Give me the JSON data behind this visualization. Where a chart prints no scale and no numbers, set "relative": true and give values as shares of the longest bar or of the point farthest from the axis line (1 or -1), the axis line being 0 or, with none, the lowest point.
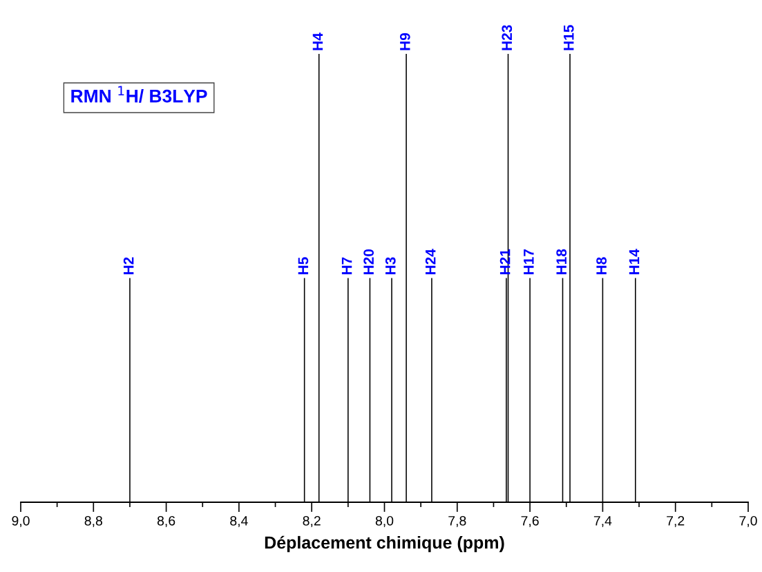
{
  "chart_data": {
    "type": "bar",
    "relative": true,
    "xlabel": "Déplacement chimique (ppm)",
    "x": [
      7.31,
      7.4,
      7.49,
      7.51,
      7.6,
      7.66,
      7.665,
      7.87,
      7.94,
      7.98,
      8.04,
      8.1,
      8.18,
      8.22,
      8.7
    ],
    "values": [
      0.5,
      0.5,
      1,
      0.5,
      0.5,
      1,
      0.5,
      0.5,
      1,
      0.5,
      0.5,
      0.5,
      1,
      0.5,
      0.5
    ],
    "color": "#000000",
    "xlim": [
      9.0,
      7.0
    ],
    "xticks": [
      {
        "value": 9.0,
        "label": "9,0"
      },
      {
        "value": 8.9,
        "label": null
      },
      {
        "value": 8.8,
        "label": "8,8"
      },
      {
        "value": 8.7,
        "label": null
      },
      {
        "value": 8.6,
        "label": "8,6"
      },
      {
        "value": 8.5,
        "label": null
      },
      {
        "value": 8.4,
        "label": "8,4"
      },
      {
        "value": 8.3,
        "label": null
      },
      {
        "value": 8.2,
        "label": "8,2"
      },
      {
        "value": 8.1,
        "label": null
      },
      {
        "value": 8.0,
        "label": "8,0"
      },
      {
        "value": 7.9,
        "label": null
      },
      {
        "value": 7.8,
        "label": "7,8"
      },
      {
        "value": 7.7,
        "label": null
      },
      {
        "value": 7.6,
        "label": "7,6"
      },
      {
        "value": 7.5,
        "label": null
      },
      {
        "value": 7.4,
        "label": "7,4"
      },
      {
        "value": 7.3,
        "label": null
      },
      {
        "value": 7.2,
        "label": "7,2"
      },
      {
        "value": 7.1,
        "label": null
      },
      {
        "value": 7.0,
        "label": "7,0"
      }
    ],
    "tick_labels": "x",
    "grid": false,
    "annotations": [
      "RMN $^{1}$H/ B3LYP",
      {
        "text": "H2",
        "x": 8.7,
        "y": 0.5
      },
      {
        "text": "H5",
        "x": 8.22,
        "y": 0.5
      },
      {
        "text": "H4",
        "x": 8.18,
        "y": 1
      },
      {
        "text": "H7",
        "x": 8.1,
        "y": 0.5
      },
      {
        "text": "H20",
        "x": 8.04,
        "y": 0.5
      },
      {
        "text": "H3",
        "x": 7.98,
        "y": 0.5
      },
      {
        "text": "H9",
        "x": 7.94,
        "y": 1
      },
      {
        "text": "H24",
        "x": 7.87,
        "y": 0.5
      },
      {
        "text": "H21",
        "x": 7.665,
        "y": 0.5
      },
      {
        "text": "H23",
        "x": 7.66,
        "y": 1
      },
      {
        "text": "H17",
        "x": 7.6,
        "y": 0.5
      },
      {
        "text": "H18",
        "x": 7.51,
        "y": 0.5
      },
      {
        "text": "H15",
        "x": 7.49,
        "y": 1
      },
      {
        "text": "H8",
        "x": 7.4,
        "y": 0.5
      },
      {
        "text": "H14",
        "x": 7.31,
        "y": 0.5
      }
    ]
  }
}
